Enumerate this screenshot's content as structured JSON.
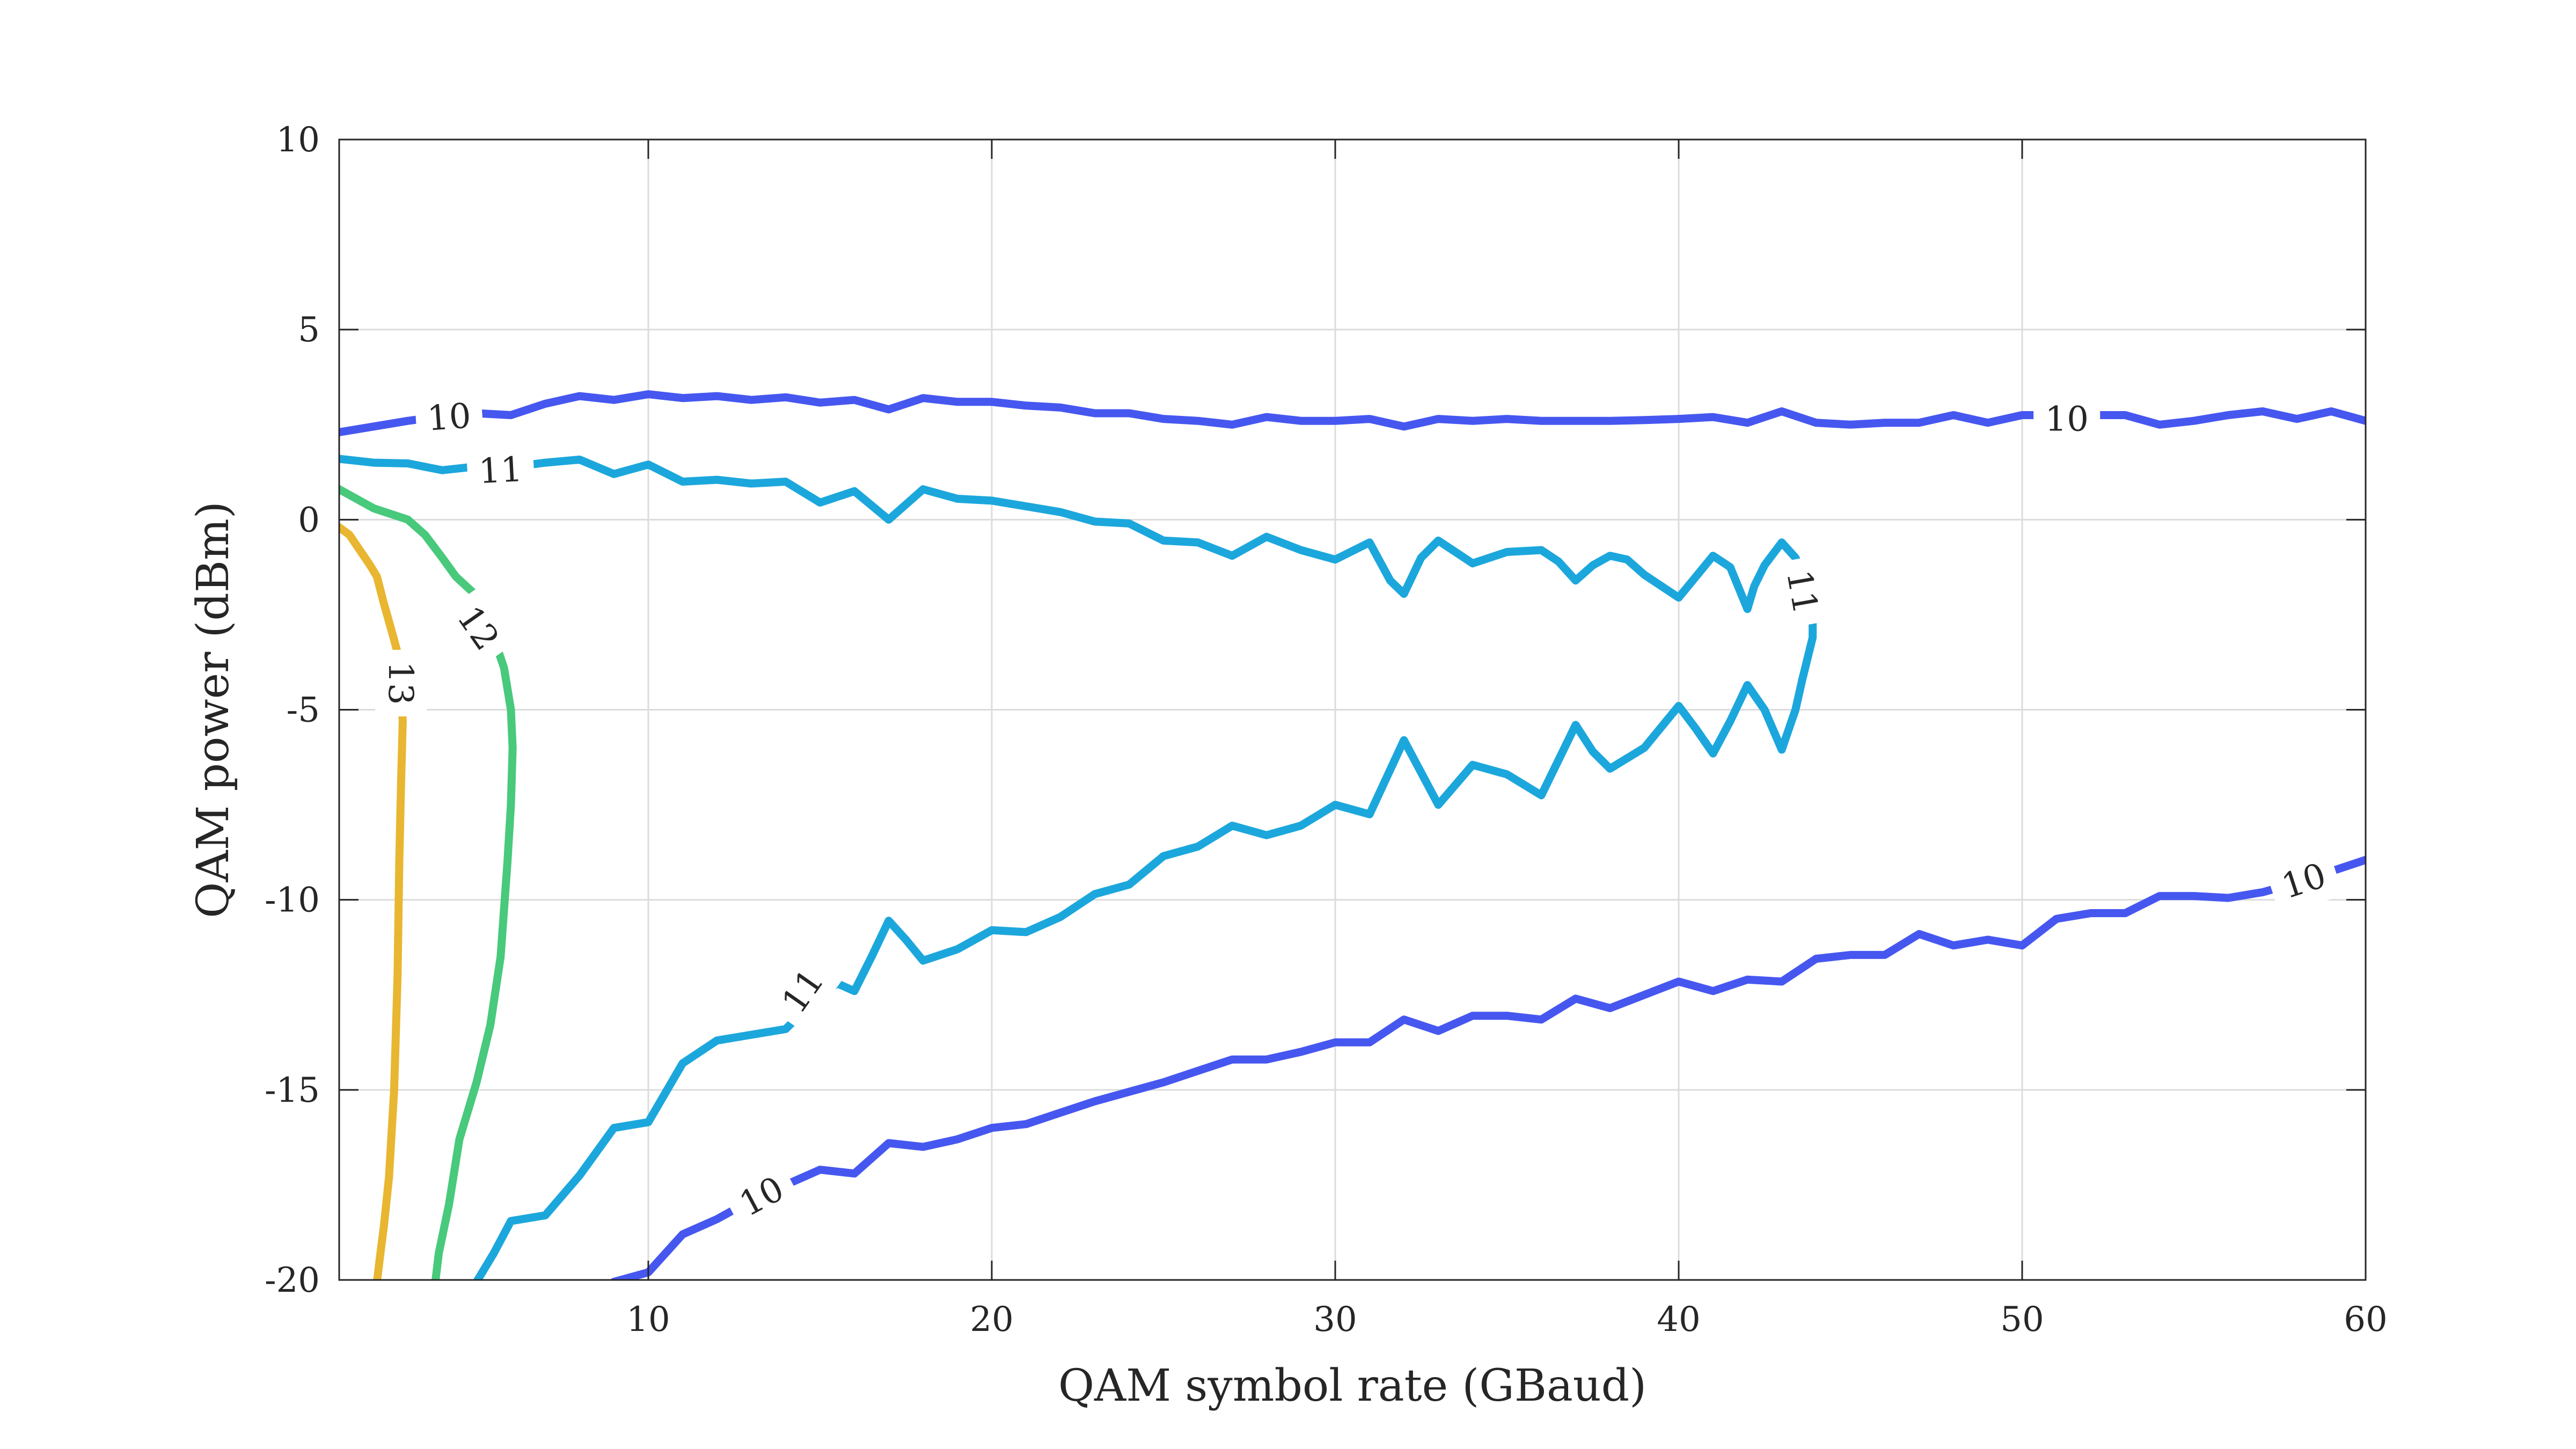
{
  "chart_data": {
    "type": "contour",
    "xlabel": "QAM symbol rate (GBaud)",
    "ylabel": "QAM power (dBm)",
    "xlim": [
      1,
      60
    ],
    "ylim": [
      -20,
      10
    ],
    "xticks": [
      10,
      20,
      30,
      40,
      50,
      60
    ],
    "xtick_labels": [
      "10",
      "20",
      "30",
      "40",
      "50",
      "60"
    ],
    "yticks": [
      10,
      5,
      0,
      -5,
      -10,
      -15,
      -20
    ],
    "ytick_labels": [
      "10",
      "5",
      "0",
      "-5",
      "-10",
      "-15",
      "-20"
    ],
    "grid": true,
    "series": [
      {
        "level": "10",
        "color": "#4657f0",
        "points": [
          [
            1,
            2.3
          ],
          [
            2,
            2.45
          ],
          [
            3,
            2.6
          ],
          [
            4,
            2.72
          ],
          [
            5,
            2.8
          ],
          [
            6,
            2.75
          ],
          [
            7,
            3.05
          ],
          [
            8,
            3.25
          ],
          [
            9,
            3.15
          ],
          [
            10,
            3.3
          ],
          [
            11,
            3.2
          ],
          [
            12,
            3.25
          ],
          [
            13,
            3.15
          ],
          [
            14,
            3.22
          ],
          [
            15,
            3.08
          ],
          [
            16,
            3.15
          ],
          [
            17,
            2.9
          ],
          [
            18,
            3.2
          ],
          [
            19,
            3.1
          ],
          [
            20,
            3.1
          ],
          [
            21,
            3.0
          ],
          [
            22,
            2.95
          ],
          [
            23,
            2.8
          ],
          [
            24,
            2.8
          ],
          [
            25,
            2.65
          ],
          [
            26,
            2.6
          ],
          [
            27,
            2.5
          ],
          [
            28,
            2.7
          ],
          [
            29,
            2.6
          ],
          [
            30,
            2.6
          ],
          [
            31,
            2.65
          ],
          [
            32,
            2.45
          ],
          [
            33,
            2.65
          ],
          [
            34,
            2.6
          ],
          [
            35,
            2.65
          ],
          [
            36,
            2.6
          ],
          [
            37,
            2.6
          ],
          [
            38,
            2.6
          ],
          [
            39,
            2.62
          ],
          [
            40,
            2.65
          ],
          [
            41,
            2.7
          ],
          [
            42,
            2.55
          ],
          [
            43,
            2.85
          ],
          [
            44,
            2.55
          ],
          [
            45,
            2.5
          ],
          [
            46,
            2.55
          ],
          [
            47,
            2.55
          ],
          [
            48,
            2.75
          ],
          [
            49,
            2.55
          ],
          [
            50,
            2.75
          ],
          [
            51,
            2.75
          ],
          [
            52,
            2.75
          ],
          [
            53,
            2.75
          ],
          [
            54,
            2.5
          ],
          [
            55,
            2.6
          ],
          [
            56,
            2.75
          ],
          [
            57,
            2.85
          ],
          [
            58,
            2.65
          ],
          [
            59,
            2.85
          ],
          [
            60,
            2.6
          ]
        ],
        "labels": [
          {
            "text": "10",
            "at": [
              4.2,
              2.7
            ],
            "angle": -4
          },
          {
            "text": "10",
            "at": [
              51.3,
              2.65
            ],
            "angle": 0
          }
        ]
      },
      {
        "level": "10",
        "color": "#4657f0",
        "points": [
          [
            9,
            -20.05
          ],
          [
            10,
            -19.8
          ],
          [
            11,
            -18.8
          ],
          [
            12,
            -18.4
          ],
          [
            13,
            -17.9
          ],
          [
            14,
            -17.5
          ],
          [
            15,
            -17.1
          ],
          [
            16,
            -17.2
          ],
          [
            17,
            -16.4
          ],
          [
            18,
            -16.5
          ],
          [
            19,
            -16.3
          ],
          [
            20,
            -16.0
          ],
          [
            21,
            -15.9
          ],
          [
            22,
            -15.6
          ],
          [
            23,
            -15.3
          ],
          [
            24,
            -15.05
          ],
          [
            25,
            -14.8
          ],
          [
            26,
            -14.5
          ],
          [
            27,
            -14.2
          ],
          [
            28,
            -14.2
          ],
          [
            29,
            -14.0
          ],
          [
            30,
            -13.75
          ],
          [
            31,
            -13.75
          ],
          [
            32,
            -13.15
          ],
          [
            33,
            -13.45
          ],
          [
            34,
            -13.05
          ],
          [
            35,
            -13.05
          ],
          [
            36,
            -13.15
          ],
          [
            37,
            -12.6
          ],
          [
            38,
            -12.85
          ],
          [
            39,
            -12.5
          ],
          [
            40,
            -12.15
          ],
          [
            41,
            -12.4
          ],
          [
            42,
            -12.1
          ],
          [
            43,
            -12.15
          ],
          [
            44,
            -11.55
          ],
          [
            45,
            -11.45
          ],
          [
            46,
            -11.45
          ],
          [
            47,
            -10.9
          ],
          [
            48,
            -11.2
          ],
          [
            49,
            -11.05
          ],
          [
            50,
            -11.2
          ],
          [
            51,
            -10.5
          ],
          [
            52,
            -10.35
          ],
          [
            53,
            -10.35
          ],
          [
            54,
            -9.9
          ],
          [
            55,
            -9.9
          ],
          [
            56,
            -9.95
          ],
          [
            57,
            -9.8
          ],
          [
            58,
            -9.55
          ],
          [
            59,
            -9.25
          ],
          [
            60,
            -8.95
          ]
        ],
        "labels": [
          {
            "text": "10",
            "at": [
              13.3,
              -17.8
            ],
            "angle": -28
          },
          {
            "text": "10",
            "at": [
              58.2,
              -9.5
            ],
            "angle": -18
          }
        ]
      },
      {
        "level": "11",
        "color": "#1ca7dc",
        "points": [
          [
            1,
            1.6
          ],
          [
            2,
            1.5
          ],
          [
            3,
            1.48
          ],
          [
            4,
            1.3
          ],
          [
            5,
            1.4
          ],
          [
            6,
            1.38
          ],
          [
            7,
            1.5
          ],
          [
            8,
            1.58
          ],
          [
            9,
            1.2
          ],
          [
            10,
            1.45
          ],
          [
            11,
            1.0
          ],
          [
            12,
            1.05
          ],
          [
            13,
            0.95
          ],
          [
            14,
            1.0
          ],
          [
            15,
            0.45
          ],
          [
            16,
            0.75
          ],
          [
            17,
            0.0
          ],
          [
            18,
            0.8
          ],
          [
            19,
            0.55
          ],
          [
            20,
            0.5
          ],
          [
            21,
            0.35
          ],
          [
            22,
            0.2
          ],
          [
            23,
            -0.05
          ],
          [
            24,
            -0.1
          ],
          [
            25,
            -0.55
          ],
          [
            26,
            -0.6
          ],
          [
            27,
            -0.95
          ],
          [
            28,
            -0.45
          ],
          [
            29,
            -0.8
          ],
          [
            30,
            -1.05
          ],
          [
            31,
            -0.6
          ],
          [
            31.6,
            -1.6
          ],
          [
            32,
            -1.95
          ],
          [
            32.5,
            -1.0
          ],
          [
            33,
            -0.55
          ],
          [
            34,
            -1.15
          ],
          [
            35,
            -0.85
          ],
          [
            36,
            -0.8
          ],
          [
            36.5,
            -1.1
          ],
          [
            37,
            -1.6
          ],
          [
            37.5,
            -1.2
          ],
          [
            38,
            -0.95
          ],
          [
            38.5,
            -1.05
          ],
          [
            39,
            -1.45
          ],
          [
            40,
            -2.05
          ],
          [
            40.5,
            -1.5
          ],
          [
            41,
            -0.95
          ],
          [
            41.5,
            -1.25
          ],
          [
            42,
            -2.35
          ],
          [
            42.2,
            -1.75
          ],
          [
            42.5,
            -1.2
          ],
          [
            43,
            -0.6
          ],
          [
            43.4,
            -1.0
          ],
          [
            43.7,
            -1.6
          ],
          [
            43.9,
            -2.5
          ],
          [
            43.9,
            -3.1
          ],
          [
            43.6,
            -4.2
          ],
          [
            43.4,
            -5.0
          ],
          [
            43,
            -6.05
          ],
          [
            42.5,
            -5.0
          ],
          [
            42,
            -4.35
          ],
          [
            41.5,
            -5.3
          ],
          [
            41,
            -6.15
          ],
          [
            40.5,
            -5.5
          ],
          [
            40,
            -4.9
          ],
          [
            39,
            -6.0
          ],
          [
            38,
            -6.55
          ],
          [
            37.5,
            -6.1
          ],
          [
            37,
            -5.4
          ],
          [
            36,
            -7.25
          ],
          [
            35,
            -6.7
          ],
          [
            34,
            -6.45
          ],
          [
            33,
            -7.5
          ],
          [
            32,
            -5.8
          ],
          [
            31,
            -7.75
          ],
          [
            30,
            -7.5
          ],
          [
            29,
            -8.05
          ],
          [
            28,
            -8.3
          ],
          [
            27,
            -8.05
          ],
          [
            26,
            -8.6
          ],
          [
            25,
            -8.85
          ],
          [
            24,
            -9.6
          ],
          [
            23,
            -9.85
          ],
          [
            22,
            -10.45
          ],
          [
            21,
            -10.85
          ],
          [
            20,
            -10.8
          ],
          [
            19,
            -11.3
          ],
          [
            18,
            -11.6
          ],
          [
            17.5,
            -11.05
          ],
          [
            17,
            -10.55
          ],
          [
            16.5,
            -11.5
          ],
          [
            16,
            -12.4
          ],
          [
            15.5,
            -12.2
          ],
          [
            15,
            -12.5
          ],
          [
            14,
            -13.4
          ],
          [
            13,
            -13.55
          ],
          [
            12,
            -13.7
          ],
          [
            11,
            -14.3
          ],
          [
            10,
            -15.85
          ],
          [
            9,
            -16.0
          ],
          [
            8,
            -17.25
          ],
          [
            7,
            -18.3
          ],
          [
            6,
            -18.45
          ],
          [
            5.5,
            -19.3
          ],
          [
            5,
            -20.05
          ]
        ],
        "labels": [
          {
            "text": "11",
            "at": [
              5.7,
              1.3
            ],
            "angle": -3
          },
          {
            "text": "11",
            "at": [
              43.6,
              -1.9
            ],
            "angle": 80
          },
          {
            "text": "11",
            "at": [
              14.5,
              -12.4
            ],
            "angle": -55
          }
        ]
      },
      {
        "level": "12",
        "color": "#48c97c",
        "points": [
          [
            1,
            0.8
          ],
          [
            2,
            0.3
          ],
          [
            3,
            0.0
          ],
          [
            3.5,
            -0.4
          ],
          [
            4,
            -1.0
          ],
          [
            4.4,
            -1.5
          ],
          [
            5,
            -2.0
          ],
          [
            5.5,
            -3.1
          ],
          [
            5.8,
            -3.9
          ],
          [
            6,
            -5.0
          ],
          [
            6.05,
            -6.0
          ],
          [
            6,
            -7.5
          ],
          [
            5.9,
            -9.0
          ],
          [
            5.7,
            -11.5
          ],
          [
            5.4,
            -13.3
          ],
          [
            5.0,
            -14.8
          ],
          [
            4.5,
            -16.3
          ],
          [
            4.2,
            -18.0
          ],
          [
            3.9,
            -19.3
          ],
          [
            3.8,
            -20.05
          ]
        ],
        "labels": [
          {
            "text": "12",
            "at": [
              5.05,
              -2.85
            ],
            "angle": 55
          }
        ]
      },
      {
        "level": "13",
        "color": "#e8b630",
        "points": [
          [
            1,
            -0.2
          ],
          [
            1.3,
            -0.4
          ],
          [
            1.6,
            -0.8
          ],
          [
            1.9,
            -1.2
          ],
          [
            2.1,
            -1.5
          ],
          [
            2.3,
            -2.2
          ],
          [
            2.55,
            -3.0
          ],
          [
            2.7,
            -3.5
          ],
          [
            2.8,
            -4.5
          ],
          [
            2.85,
            -5.3
          ],
          [
            2.8,
            -7.0
          ],
          [
            2.75,
            -9.0
          ],
          [
            2.7,
            -12.0
          ],
          [
            2.6,
            -15.0
          ],
          [
            2.45,
            -17.3
          ],
          [
            2.3,
            -18.6
          ],
          [
            2.2,
            -19.3
          ],
          [
            2.1,
            -20.05
          ]
        ],
        "labels": [
          {
            "text": "13",
            "at": [
              2.8,
              -4.3
            ],
            "angle": 90
          }
        ]
      }
    ]
  }
}
